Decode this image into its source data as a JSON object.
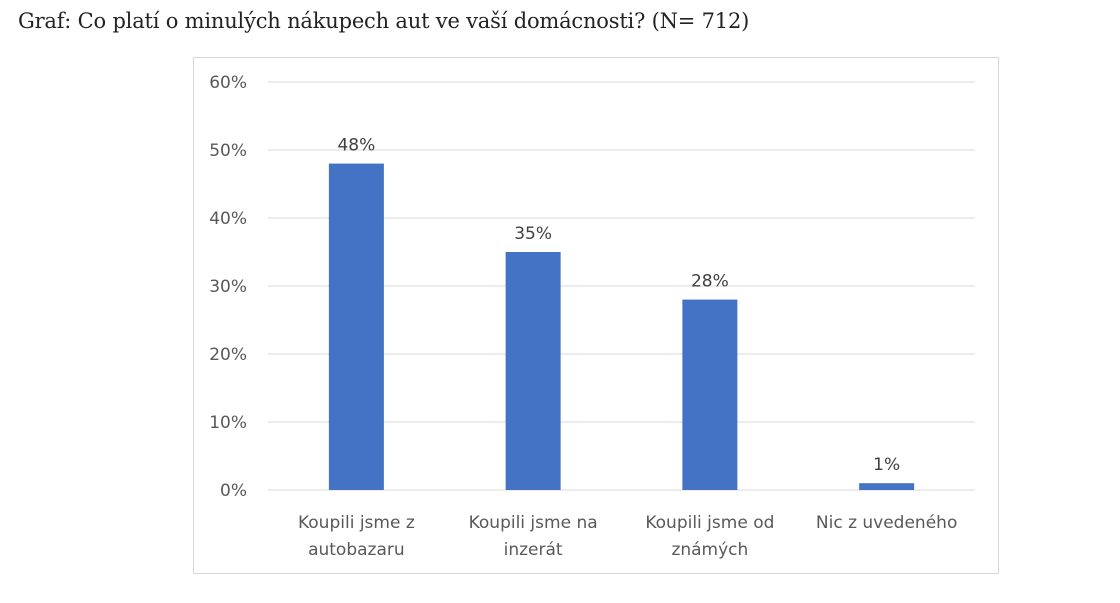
{
  "page": {
    "title": "Graf: Co platí o minulých nákupech aut ve vaší domácnosti? (N= 712)"
  },
  "chart_data": {
    "type": "bar",
    "categories": [
      [
        "Koupili jsme z",
        "autobazaru"
      ],
      [
        "Koupili jsme na",
        "inzerát"
      ],
      [
        "Koupili jsme od",
        "známých"
      ],
      [
        "Nic z uvedeného"
      ]
    ],
    "values": [
      48,
      35,
      28,
      1
    ],
    "data_labels": [
      "48%",
      "35%",
      "28%",
      "1%"
    ],
    "yticks": [
      0,
      10,
      20,
      30,
      40,
      50,
      60
    ],
    "ytick_labels": [
      "0%",
      "10%",
      "20%",
      "30%",
      "40%",
      "50%",
      "60%"
    ],
    "ylim": [
      0,
      60
    ],
    "grid": true,
    "legend": "none",
    "bar_color": "#4472c4",
    "grid_color": "#d9d9d9"
  }
}
